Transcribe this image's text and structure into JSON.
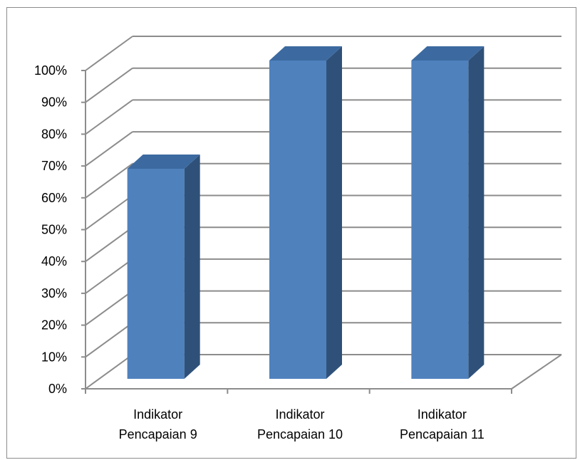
{
  "chart_data": {
    "type": "bar",
    "style": "3d-column",
    "categories": [
      [
        "Indikator",
        "Pencapaian 9"
      ],
      [
        "Indikator",
        "Pencapaian 10"
      ],
      [
        "Indikator",
        "Pencapaian 11"
      ]
    ],
    "values": [
      66,
      100,
      100
    ],
    "y_ticks": [
      "0%",
      "10%",
      "20%",
      "30%",
      "40%",
      "50%",
      "60%",
      "70%",
      "80%",
      "90%",
      "100%"
    ],
    "ylim": [
      0,
      100
    ],
    "grid": true,
    "legend": "none",
    "colors": {
      "bar_front": "#4f81bd",
      "bar_top": "#3c6aa0",
      "bar_side": "#2f5179",
      "gridline": "#8c8c8c"
    }
  }
}
